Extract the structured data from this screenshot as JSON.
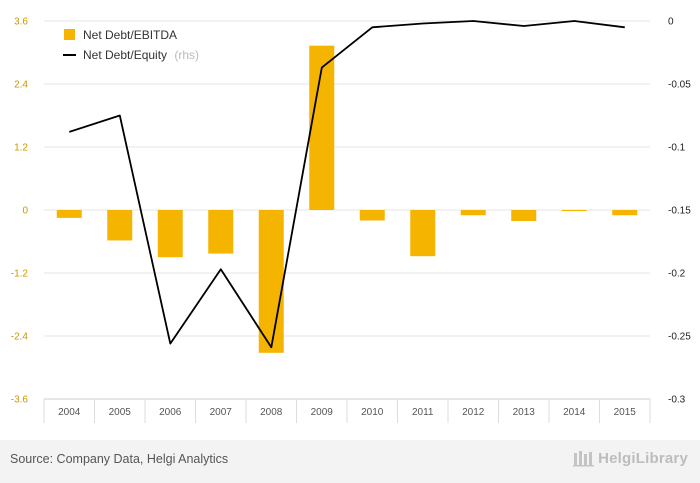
{
  "chart_data": {
    "type": "bar+line",
    "categories": [
      "2004",
      "2005",
      "2006",
      "2007",
      "2008",
      "2009",
      "2010",
      "2011",
      "2012",
      "2013",
      "2014",
      "2015"
    ],
    "series": [
      {
        "name": "Net Debt/EBITDA",
        "type": "bar",
        "axis": "left",
        "color": "#f5b400",
        "values": [
          -0.15,
          -0.58,
          -0.9,
          -0.83,
          -2.72,
          3.13,
          -0.2,
          -0.88,
          -0.1,
          -0.21,
          -0.02,
          -0.1
        ]
      },
      {
        "name": "Net Debt/Equity",
        "suffix": "(rhs)",
        "type": "line",
        "axis": "right",
        "color": "#000000",
        "values": [
          -0.088,
          -0.075,
          -0.256,
          -0.197,
          -0.259,
          -0.037,
          -0.005,
          -0.002,
          -0.0,
          -0.004,
          0.0,
          -0.005
        ]
      }
    ],
    "y_left": {
      "min": -3.6,
      "max": 3.6,
      "ticks": [
        "3.6",
        "2.4",
        "1.2",
        "0",
        "-1.2",
        "-2.4",
        "-3.6"
      ]
    },
    "y_right": {
      "min": -0.3,
      "max": 0,
      "ticks": [
        "0",
        "-0.05",
        "-0.1",
        "-0.15",
        "-0.2",
        "-0.25",
        "-0.3"
      ]
    },
    "legend": [
      {
        "label": "Net Debt/EBITDA",
        "sub": ""
      },
      {
        "label": "Net Debt/Equity",
        "sub": "(rhs)"
      }
    ],
    "grid": true
  },
  "footer": {
    "source": "Source: Company Data, Helgi Analytics",
    "logo": "HelgiLibrary"
  }
}
